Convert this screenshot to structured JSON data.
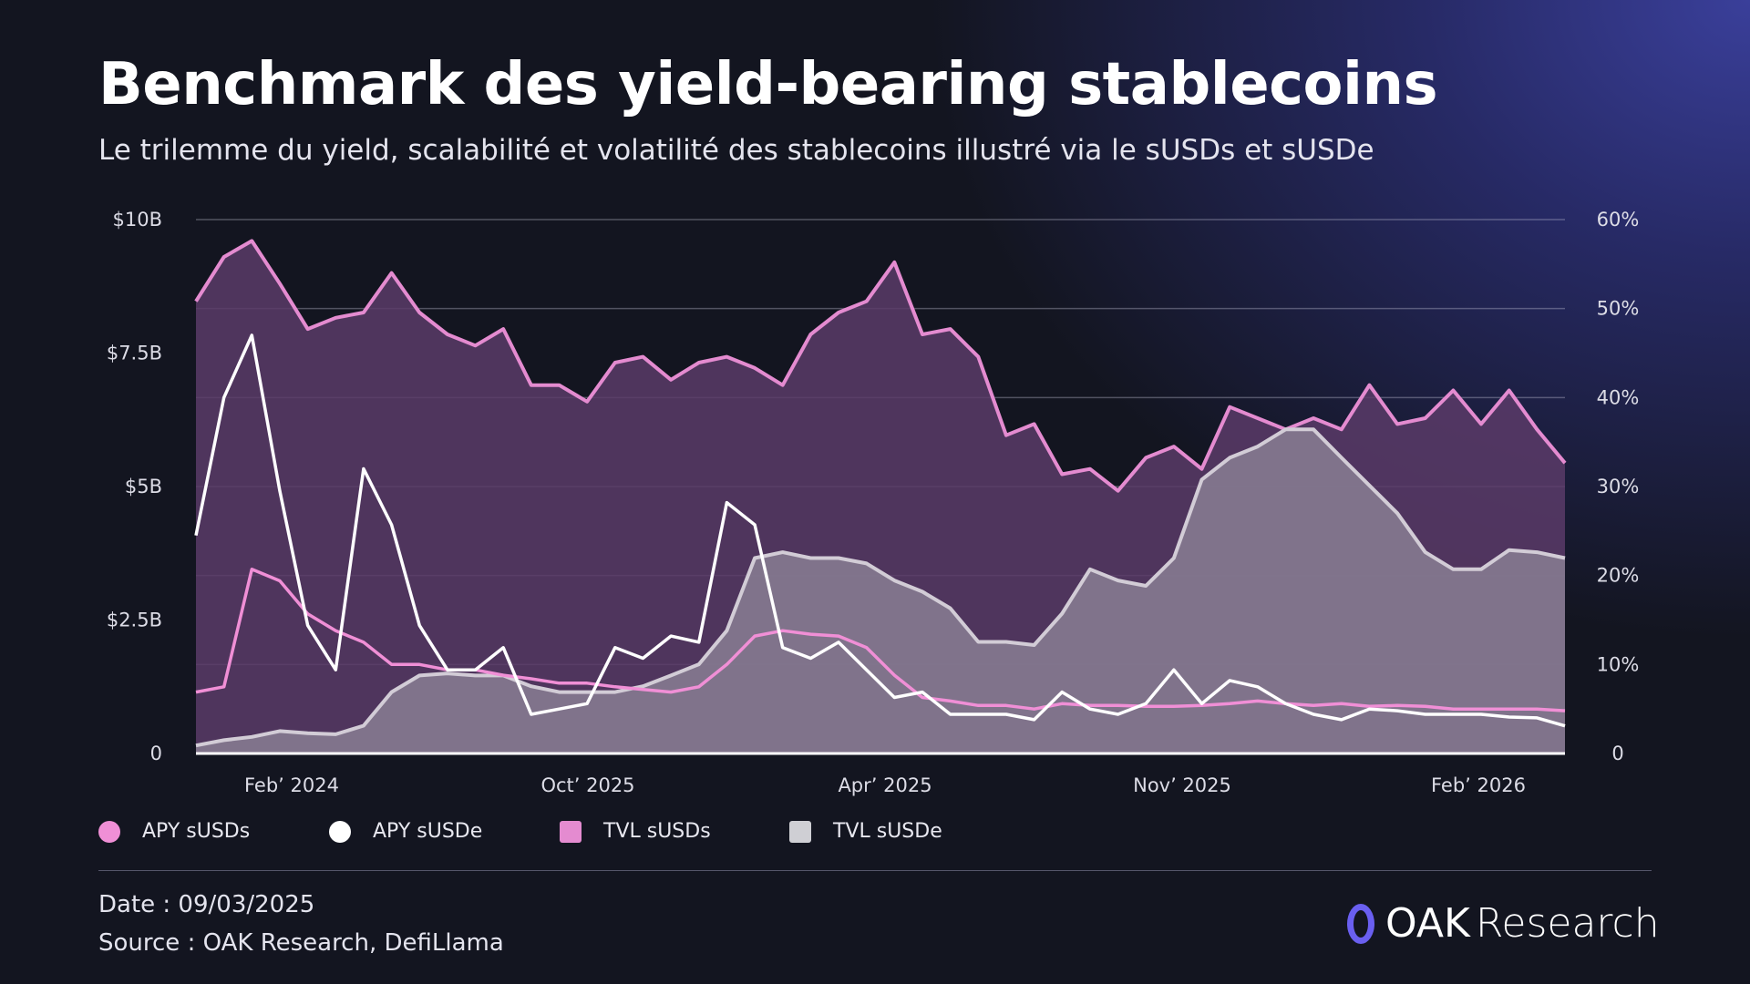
{
  "header": {
    "title": "Benchmark des yield-bearing stablecoins",
    "subtitle": "Le trilemme du yield, scalabilité et volatilité des stablecoins illustré via le sUSDs et sUSDe"
  },
  "chart_data": {
    "type": "line",
    "x_tick_labels": [
      "Feb’ 2024",
      "Oct’ 2025",
      "Apr’ 2025",
      "Nov’ 2025",
      "Feb’ 2026"
    ],
    "y_left": {
      "ticks": [
        "0",
        "$2.5B",
        "$5B",
        "$7.5B",
        "$10B"
      ],
      "range": [
        0,
        10
      ],
      "unit": "$B"
    },
    "y_right": {
      "ticks": [
        "0",
        "10%",
        "20%",
        "30%",
        "40%",
        "50%",
        "60%"
      ],
      "range": [
        0,
        60
      ],
      "unit": "%"
    },
    "grid": true,
    "legend_placement": "bottom-left",
    "series": [
      {
        "name": "TVL sUSDs",
        "axis": "left",
        "kind": "area",
        "color": "#e48bd0",
        "fill": "#5b3b68",
        "values": [
          8.47,
          9.3,
          9.6,
          8.8,
          7.95,
          8.16,
          8.26,
          9.0,
          8.26,
          7.85,
          7.64,
          7.95,
          6.9,
          6.9,
          6.59,
          7.32,
          7.43,
          7.0,
          7.32,
          7.43,
          7.22,
          6.9,
          7.85,
          8.26,
          8.47,
          9.2,
          7.85,
          7.95,
          7.43,
          5.96,
          6.17,
          5.23,
          5.33,
          4.92,
          5.54,
          5.75,
          5.33,
          6.49,
          6.28,
          6.07,
          6.28,
          6.07,
          6.9,
          6.17,
          6.28,
          6.8,
          6.17,
          6.8,
          6.07,
          5.44
        ]
      },
      {
        "name": "TVL sUSDe",
        "axis": "left",
        "kind": "area",
        "color": "#d2ccd6",
        "fill": "#857a90",
        "values": [
          0.15,
          0.25,
          0.31,
          0.42,
          0.38,
          0.36,
          0.52,
          1.15,
          1.46,
          1.5,
          1.46,
          1.46,
          1.26,
          1.15,
          1.15,
          1.15,
          1.26,
          1.46,
          1.67,
          2.3,
          3.66,
          3.77,
          3.66,
          3.66,
          3.56,
          3.24,
          3.03,
          2.72,
          2.09,
          2.09,
          2.03,
          2.62,
          3.45,
          3.24,
          3.14,
          3.66,
          5.13,
          5.54,
          5.75,
          6.07,
          6.07,
          5.54,
          5.02,
          4.5,
          3.77,
          3.45,
          3.45,
          3.81,
          3.77,
          3.66
        ]
      },
      {
        "name": "APY sUSDs",
        "axis": "right",
        "kind": "line",
        "color": "#f08fd6",
        "values": [
          6.9,
          7.5,
          20.7,
          19.4,
          15.7,
          13.8,
          12.5,
          10.0,
          10.0,
          9.4,
          9.4,
          8.8,
          8.4,
          7.9,
          7.9,
          7.5,
          7.2,
          6.9,
          7.5,
          10.0,
          13.2,
          13.8,
          13.4,
          13.2,
          11.9,
          8.8,
          6.3,
          5.9,
          5.4,
          5.4,
          5.0,
          5.6,
          5.4,
          5.4,
          5.3,
          5.3,
          5.4,
          5.6,
          5.9,
          5.6,
          5.4,
          5.6,
          5.3,
          5.4,
          5.3,
          5.0,
          5.0,
          5.0,
          5.0,
          4.8
        ]
      },
      {
        "name": "APY sUSDe",
        "axis": "right",
        "kind": "line",
        "color": "#ffffff",
        "values": [
          24.5,
          40,
          47.0,
          29.5,
          14.4,
          9.4,
          32,
          25.7,
          14.4,
          9.4,
          9.4,
          11.9,
          4.4,
          5.0,
          5.6,
          11.9,
          10.7,
          13.2,
          12.5,
          28.2,
          25.7,
          11.9,
          10.7,
          12.5,
          9.4,
          6.3,
          6.9,
          4.4,
          4.4,
          4.4,
          3.8,
          6.9,
          5.0,
          4.4,
          5.6,
          9.4,
          5.6,
          8.2,
          7.5,
          5.6,
          4.4,
          3.8,
          5.0,
          4.8,
          4.4,
          4.4,
          4.4,
          4.1,
          4.0,
          3.1
        ]
      }
    ]
  },
  "legend": [
    {
      "label": "APY sUSDs",
      "color": "#f08fd6",
      "shape": "circle"
    },
    {
      "label": "APY sUSDe",
      "color": "#ffffff",
      "shape": "circle"
    },
    {
      "label": "TVL sUSDs",
      "color": "#e48bd0",
      "shape": "square"
    },
    {
      "label": "TVL sUSDe",
      "color": "#cfcfd4",
      "shape": "square"
    }
  ],
  "footer": {
    "date": "Date : 09/03/2025",
    "source": "Source : OAK Research, DefiLlama",
    "logo_bold": "OAK",
    "logo_light": "Research"
  }
}
